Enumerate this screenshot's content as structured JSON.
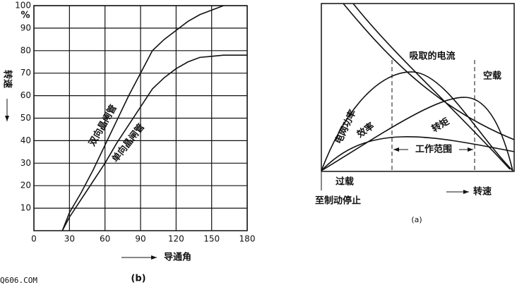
{
  "chart_data": [
    {
      "type": "line",
      "x_label": "导通角",
      "y_label": "转速",
      "y_unit": "%",
      "caption": "(b)",
      "x": [
        24,
        30,
        40,
        50,
        60,
        70,
        80,
        90,
        100,
        110,
        120,
        130,
        140,
        150,
        160,
        170,
        180
      ],
      "series": [
        {
          "name": "双向晶闸管",
          "color": "#111",
          "values": [
            0,
            8,
            17,
            27,
            38,
            49,
            60,
            70,
            80,
            85,
            89,
            93,
            96,
            98,
            100,
            null,
            null
          ]
        },
        {
          "name": "单向晶闸管",
          "color": "#111",
          "values": [
            0,
            6,
            14,
            22,
            30,
            39,
            47,
            55,
            63,
            68,
            72,
            75,
            77,
            77.5,
            78,
            78,
            78
          ]
        }
      ],
      "xlim": [
        0,
        180
      ],
      "ylim": [
        0,
        100
      ],
      "xticks": [
        0,
        30,
        60,
        90,
        120,
        150,
        180
      ],
      "yticks": [
        10,
        20,
        30,
        40,
        50,
        60,
        70,
        80,
        90,
        100
      ],
      "grid": true
    },
    {
      "type": "diagram",
      "caption": "(a)",
      "labels": {
        "current": "吸取的电流",
        "no_load": "空载",
        "grid_power": "电网功率",
        "efficiency": "效率",
        "torque": "转矩",
        "working_range": "工作范围",
        "overload": "过载",
        "to_braking": "至制动停止",
        "speed": "转速"
      }
    }
  ],
  "watermark": "Q606.COM"
}
